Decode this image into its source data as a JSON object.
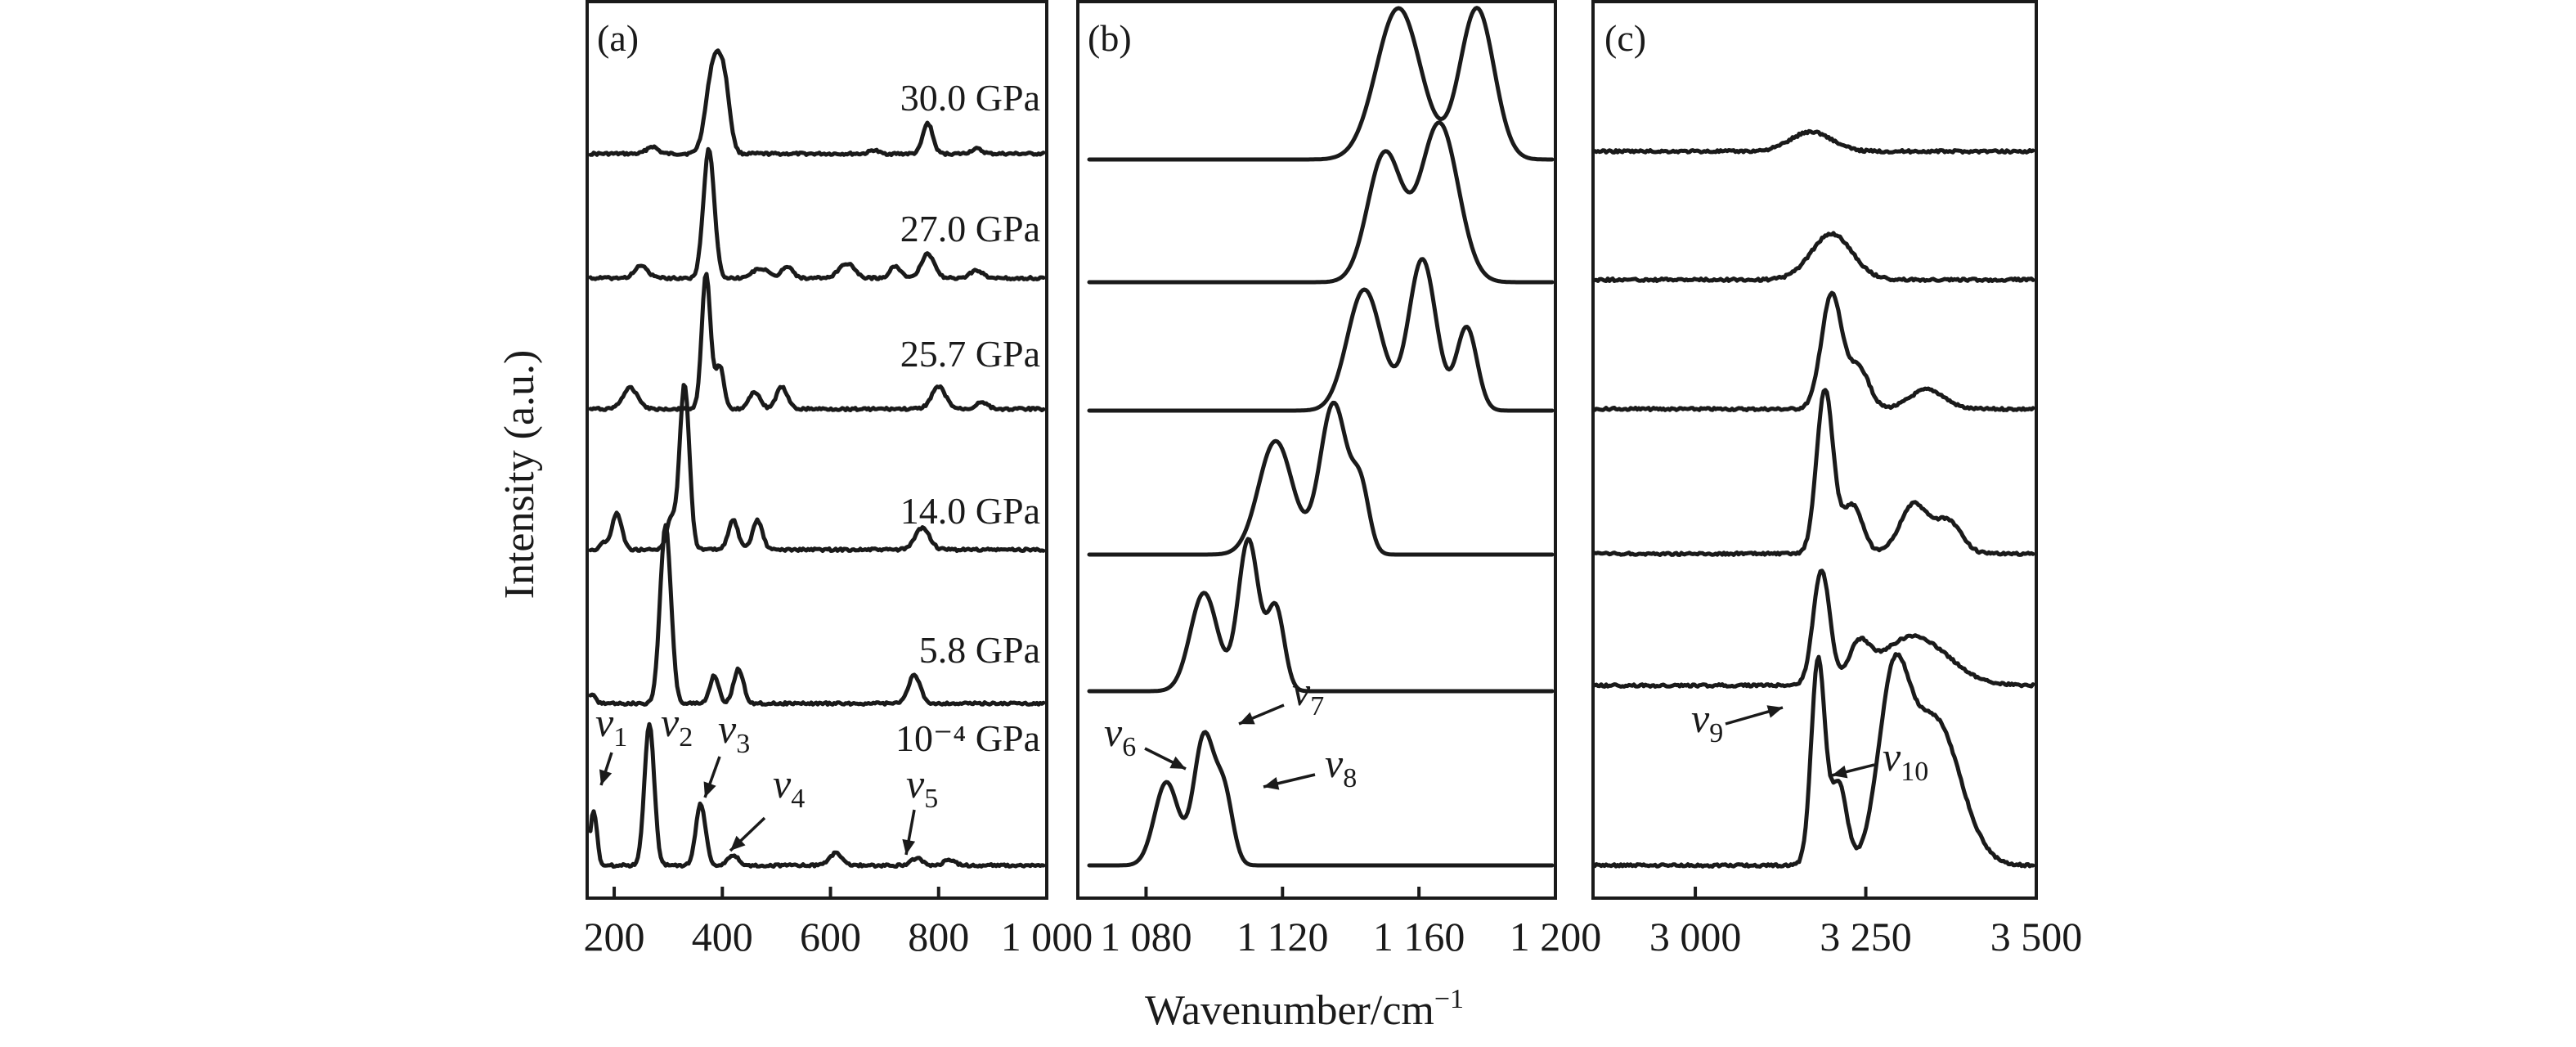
{
  "chart_data": [
    {
      "type": "line",
      "panel": "(a)",
      "xlim": [
        150,
        1000
      ],
      "xticks": [
        {
          "value": 200,
          "label": "200"
        },
        {
          "value": 400,
          "label": "400"
        },
        {
          "value": 600,
          "label": "600"
        },
        {
          "value": 800,
          "label": "800"
        },
        {
          "value": 1000,
          "label": "1 000"
        }
      ],
      "series": [
        {
          "name": "30.0 GPa",
          "peaks": [
            [
              385,
              0.75,
              14
            ],
            [
              405,
              0.4,
              10
            ],
            [
              270,
              0.06,
              10
            ],
            [
              780,
              0.25,
              9
            ],
            [
              870,
              0.04,
              10
            ],
            [
              680,
              0.03,
              8
            ]
          ]
        },
        {
          "name": "27.0 GPa",
          "peaks": [
            [
              375,
              1.05,
              10
            ],
            [
              250,
              0.1,
              12
            ],
            [
              470,
              0.08,
              14
            ],
            [
              520,
              0.1,
              10
            ],
            [
              630,
              0.12,
              14
            ],
            [
              720,
              0.1,
              10
            ],
            [
              780,
              0.2,
              12
            ],
            [
              870,
              0.06,
              12
            ]
          ]
        },
        {
          "name": "25.7 GPa",
          "peaks": [
            [
              370,
              1.1,
              8
            ],
            [
              395,
              0.35,
              8
            ],
            [
              230,
              0.17,
              14
            ],
            [
              460,
              0.14,
              10
            ],
            [
              510,
              0.18,
              10
            ],
            [
              800,
              0.18,
              13
            ],
            [
              880,
              0.06,
              10
            ]
          ]
        },
        {
          "name": "14.0 GPa",
          "peaks": [
            [
              330,
              1.35,
              9
            ],
            [
              305,
              0.25,
              8
            ],
            [
              205,
              0.3,
              9
            ],
            [
              420,
              0.24,
              9
            ],
            [
              465,
              0.24,
              9
            ],
            [
              770,
              0.18,
              13
            ],
            [
              180,
              0.06,
              6
            ]
          ]
        },
        {
          "name": "5.8 GPa",
          "peaks": [
            [
              295,
              1.45,
              10
            ],
            [
              385,
              0.23,
              8
            ],
            [
              430,
              0.28,
              9
            ],
            [
              755,
              0.23,
              11
            ],
            [
              160,
              0.07,
              6
            ]
          ]
        },
        {
          "name": "10⁻⁴ GPa",
          "peaks": [
            [
              162,
              0.45,
              6
            ],
            [
              265,
              1.15,
              9
            ],
            [
              360,
              0.5,
              9
            ],
            [
              420,
              0.08,
              10
            ],
            [
              610,
              0.1,
              12
            ],
            [
              760,
              0.06,
              10
            ],
            [
              820,
              0.05,
              10
            ]
          ]
        }
      ],
      "annotations": [
        {
          "base": "v",
          "sub": "1",
          "x": 162
        },
        {
          "base": "v",
          "sub": "2",
          "x": 265
        },
        {
          "base": "v",
          "sub": "3",
          "x": 360
        },
        {
          "base": "v",
          "sub": "4",
          "x": 420
        },
        {
          "base": "v",
          "sub": "5",
          "x": 745
        }
      ]
    },
    {
      "type": "line",
      "panel": "(b)",
      "xlim": [
        1060,
        1200
      ],
      "xticks": [
        {
          "value": 1080,
          "label": "1 080"
        },
        {
          "value": 1120,
          "label": "1 120"
        },
        {
          "value": 1160,
          "label": "1 160"
        },
        {
          "value": 1200,
          "label": "1 200"
        }
      ],
      "series": [
        {
          "name": "30.0 GPa",
          "peaks": [
            [
              1154,
              1.0,
              6.5
            ],
            [
              1177,
              1.0,
              5
            ]
          ]
        },
        {
          "name": "27.0 GPa",
          "peaks": [
            [
              1150,
              0.85,
              5
            ],
            [
              1166,
              1.05,
              5.5
            ]
          ]
        },
        {
          "name": "25.7 GPa",
          "peaks": [
            [
              1144,
              0.8,
              5
            ],
            [
              1161,
              1.0,
              4
            ],
            [
              1174,
              0.55,
              3
            ]
          ]
        },
        {
          "name": "14.0 GPa",
          "peaks": [
            [
              1118,
              0.75,
              5
            ],
            [
              1135,
              1.0,
              4
            ],
            [
              1143,
              0.4,
              2.5
            ]
          ]
        },
        {
          "name": "5.8 GPa",
          "peaks": [
            [
              1097,
              0.65,
              4
            ],
            [
              1110,
              1.0,
              3
            ],
            [
              1118,
              0.55,
              2.5
            ]
          ]
        },
        {
          "name": "10⁻⁴ GPa",
          "peaks": [
            [
              1086,
              0.55,
              3.5
            ],
            [
              1097,
              0.85,
              3
            ],
            [
              1103,
              0.45,
              2.5
            ]
          ]
        }
      ],
      "annotations": [
        {
          "base": "v",
          "sub": "6",
          "x": 1086
        },
        {
          "base": "v",
          "sub": "7",
          "x": 1097
        },
        {
          "base": "v",
          "sub": "8",
          "x": 1103
        }
      ]
    },
    {
      "type": "line",
      "panel": "(c)",
      "xlim": [
        2850,
        3500
      ],
      "xticks": [
        {
          "value": 3000,
          "label": "3 000"
        },
        {
          "value": 3250,
          "label": "3 250"
        },
        {
          "value": 3500,
          "label": "3 500"
        }
      ],
      "series": [
        {
          "name": "30.0 GPa",
          "peaks": [
            [
              3170,
              0.12,
              30
            ]
          ]
        },
        {
          "name": "27.0 GPa",
          "peaks": [
            [
              3200,
              0.28,
              30
            ]
          ]
        },
        {
          "name": "25.7 GPa",
          "peaks": [
            [
              3200,
              0.7,
              15
            ],
            [
              3240,
              0.25,
              15
            ],
            [
              3340,
              0.12,
              25
            ]
          ]
        },
        {
          "name": "14.0 GPa",
          "peaks": [
            [
              3190,
              1.0,
              12
            ],
            [
              3230,
              0.3,
              15
            ],
            [
              3320,
              0.3,
              20
            ],
            [
              3370,
              0.2,
              20
            ]
          ]
        },
        {
          "name": "5.8 GPa",
          "peaks": [
            [
              3185,
              0.7,
              12
            ],
            [
              3240,
              0.2,
              15
            ],
            [
              3320,
              0.3,
              50
            ]
          ]
        },
        {
          "name": "10⁻⁴ GPa",
          "peaks": [
            [
              3180,
              1.25,
              10
            ],
            [
              3210,
              0.5,
              12
            ],
            [
              3290,
              1.0,
              22
            ],
            [
              3350,
              0.9,
              38
            ]
          ]
        }
      ],
      "annotations": [
        {
          "base": "v",
          "sub": "9",
          "x": 3180
        },
        {
          "base": "v",
          "sub": "10",
          "x": 3210
        }
      ]
    }
  ],
  "axis_titles": {
    "y": "Intensity (a.u.)",
    "x_base": "Wavenumber/cm",
    "x_exp": "−1"
  }
}
